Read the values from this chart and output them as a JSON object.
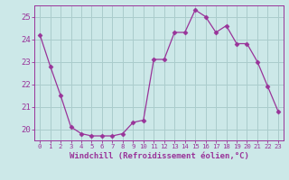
{
  "x": [
    0,
    1,
    2,
    3,
    4,
    5,
    6,
    7,
    8,
    9,
    10,
    11,
    12,
    13,
    14,
    15,
    16,
    17,
    18,
    19,
    20,
    21,
    22,
    23
  ],
  "y": [
    24.2,
    22.8,
    21.5,
    20.1,
    19.8,
    19.7,
    19.7,
    19.7,
    19.8,
    20.3,
    20.4,
    23.1,
    23.1,
    24.3,
    24.3,
    25.3,
    25.0,
    24.3,
    24.6,
    23.8,
    23.8,
    23.0,
    21.9,
    20.8
  ],
  "line_color": "#993399",
  "marker": "D",
  "marker_size": 2.5,
  "bg_color": "#cce8e8",
  "grid_color": "#aacccc",
  "xlabel": "Windchill (Refroidissement éolien,°C)",
  "xlabel_color": "#993399",
  "tick_color": "#993399",
  "spine_color": "#993399",
  "ylim": [
    19.5,
    25.5
  ],
  "yticks": [
    20,
    21,
    22,
    23,
    24,
    25
  ],
  "xlim": [
    -0.5,
    23.5
  ],
  "xticks": [
    0,
    1,
    2,
    3,
    4,
    5,
    6,
    7,
    8,
    9,
    10,
    11,
    12,
    13,
    14,
    15,
    16,
    17,
    18,
    19,
    20,
    21,
    22,
    23
  ]
}
